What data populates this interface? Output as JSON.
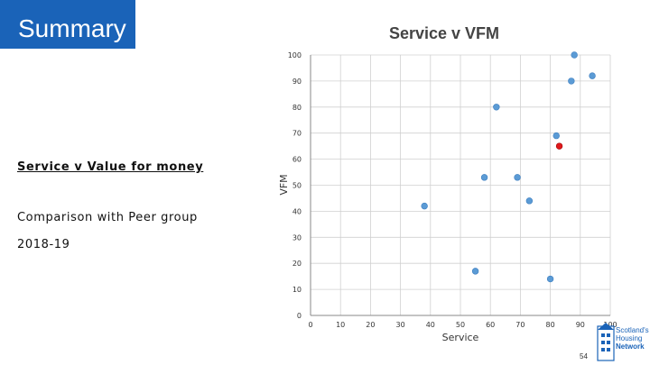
{
  "header": {
    "title": "Summary"
  },
  "left_panel": {
    "subtitle": "Service  v  Value for money",
    "comparison": "Comparison with Peer group",
    "year": "2018-19"
  },
  "footer": {
    "logo_text_1": "Scotland's",
    "logo_text_2": "Housing",
    "logo_text_3": "Network",
    "page_number": "54"
  },
  "colors": {
    "accent": "#1a63b8",
    "point": "#5b9bd5",
    "highlight": "#e0191c",
    "grid": "#d0d0d0"
  },
  "chart_data": {
    "type": "scatter",
    "title": "Service v VFM",
    "xlabel": "Service",
    "ylabel": "VFM",
    "xlim": [
      0,
      100
    ],
    "ylim": [
      0,
      100
    ],
    "xticks": [
      0,
      10,
      20,
      30,
      40,
      50,
      60,
      70,
      80,
      90,
      100
    ],
    "yticks": [
      0,
      10,
      20,
      30,
      40,
      50,
      60,
      70,
      80,
      90,
      100
    ],
    "grid": true,
    "series": [
      {
        "points": [
          {
            "x": 88,
            "y": 100
          },
          {
            "x": 94,
            "y": 92
          },
          {
            "x": 87,
            "y": 90
          },
          {
            "x": 62,
            "y": 80
          },
          {
            "x": 82,
            "y": 69
          },
          {
            "x": 58,
            "y": 53
          },
          {
            "x": 69,
            "y": 53
          },
          {
            "x": 73,
            "y": 44
          },
          {
            "x": 38,
            "y": 42
          },
          {
            "x": 55,
            "y": 17
          },
          {
            "x": 80,
            "y": 14
          }
        ]
      },
      {
        "highlight": true,
        "points": [
          {
            "x": 83,
            "y": 65
          }
        ]
      }
    ]
  }
}
